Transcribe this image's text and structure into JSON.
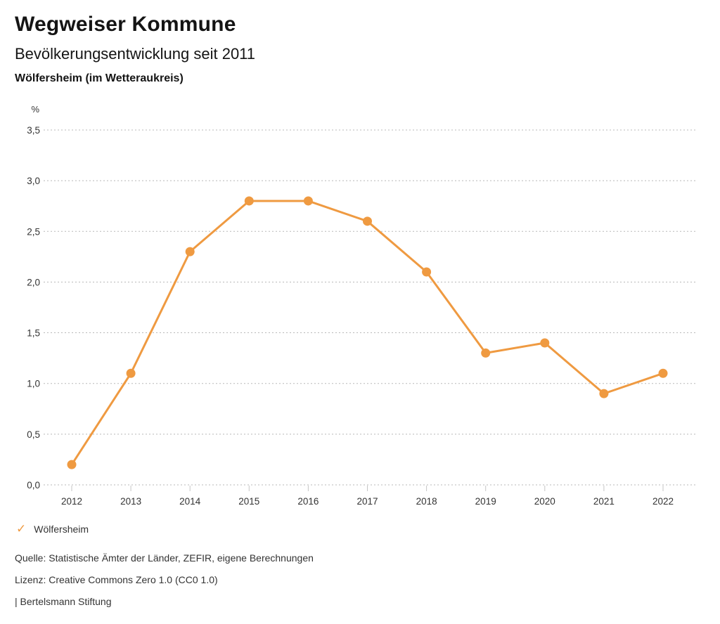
{
  "header": {
    "title": "Wegweiser Kommune",
    "subtitle": "Bevölkerungsentwicklung seit 2011",
    "region": "Wölfersheim (im Wetteraukreis)"
  },
  "chart_data": {
    "type": "line",
    "title": "Bevölkerungsentwicklung seit 2011",
    "unit_label": "%",
    "categories": [
      "2012",
      "2013",
      "2014",
      "2015",
      "2016",
      "2017",
      "2018",
      "2019",
      "2020",
      "2021",
      "2022"
    ],
    "series": [
      {
        "name": "Wölfersheim",
        "values": [
          0.2,
          1.1,
          2.3,
          2.8,
          2.8,
          2.6,
          2.1,
          1.3,
          1.4,
          0.9,
          1.1
        ],
        "color": "#EF9A41"
      }
    ],
    "ylim": [
      0,
      3.5
    ],
    "ytick_step": 0.5,
    "ytick_labels": [
      "0,0",
      "0,5",
      "1,0",
      "1,5",
      "2,0",
      "2,5",
      "3,0",
      "3,5"
    ],
    "grid": "horizontal-dotted",
    "gridline_color": "#b8b8b8",
    "axis_text_color": "#333333",
    "legend_position": "bottom-left"
  },
  "legend": {
    "items": [
      {
        "label": "Wölfersheim",
        "color": "#EF9A41",
        "marker": "check"
      }
    ]
  },
  "footer": {
    "source": "Quelle: Statistische Ämter der Länder, ZEFIR, eigene Berechnungen",
    "license": "Lizenz: Creative Commons Zero 1.0 (CC0 1.0)",
    "attribution": "| Bertelsmann Stiftung"
  }
}
